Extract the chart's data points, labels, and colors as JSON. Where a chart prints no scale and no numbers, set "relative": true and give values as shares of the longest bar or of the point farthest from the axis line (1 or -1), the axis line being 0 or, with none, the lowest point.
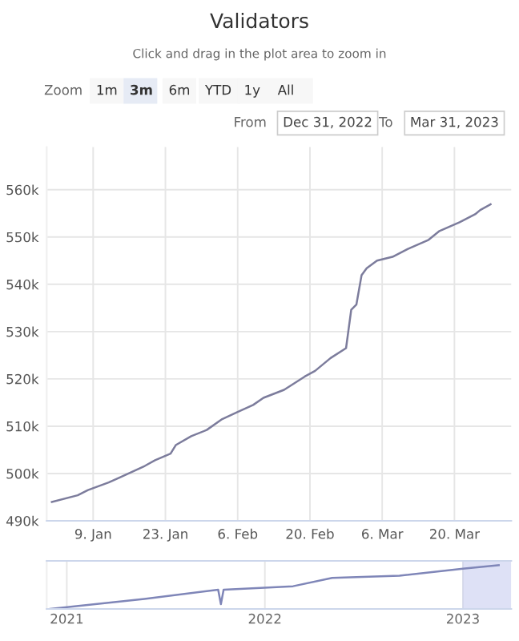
{
  "chart_data": [
    {
      "type": "line",
      "title": "Validators",
      "subtitle": "Click and drag in the plot area to zoom in",
      "annotations": [
        "Zoom",
        "1m",
        "3m",
        "6m",
        "YTD",
        "1y",
        "All",
        "From",
        "Dec 31, 2022",
        "To",
        "Mar 31, 2023"
      ],
      "x": [
        "2023-01-01",
        "2023-01-06",
        "2023-01-08",
        "2023-01-12",
        "2023-01-14",
        "2023-01-19",
        "2023-01-21",
        "2023-01-24",
        "2023-01-25",
        "2023-01-28",
        "2023-01-31",
        "2023-02-03",
        "2023-02-06",
        "2023-02-09",
        "2023-02-11",
        "2023-02-15",
        "2023-02-19",
        "2023-02-21",
        "2023-02-24",
        "2023-02-27",
        "2023-02-28",
        "2023-03-01",
        "2023-03-02",
        "2023-03-03",
        "2023-03-05",
        "2023-03-08",
        "2023-03-11",
        "2023-03-15",
        "2023-03-17",
        "2023-03-21",
        "2023-03-24",
        "2023-03-25",
        "2023-03-27"
      ],
      "series": [
        {
          "color": "#7c7c9c",
          "values": [
            494000,
            495400,
            496500,
            498100,
            499100,
            501600,
            502800,
            504200,
            506000,
            507900,
            509200,
            511500,
            513000,
            514500,
            516000,
            517700,
            520500,
            521700,
            524400,
            526500,
            534600,
            535700,
            541900,
            543400,
            545000,
            545800,
            547500,
            549400,
            551200,
            553100,
            554800,
            555700,
            556900
          ]
        }
      ],
      "xlim": [
        "2022-12-31",
        "2023-03-31"
      ],
      "xticks": [
        {
          "value": "2023-01-09",
          "label": "9. Jan"
        },
        {
          "value": "2023-01-23",
          "label": "23. Jan"
        },
        {
          "value": "2023-02-06",
          "label": "6. Feb"
        },
        {
          "value": "2023-02-20",
          "label": "20. Feb"
        },
        {
          "value": "2023-03-06",
          "label": "6. Mar"
        },
        {
          "value": "2023-03-20",
          "label": "20. Mar"
        }
      ],
      "ylim": [
        490000,
        569000
      ],
      "yticks": [
        {
          "value": 490000,
          "label": "490k"
        },
        {
          "value": 500000,
          "label": "500k"
        },
        {
          "value": 510000,
          "label": "510k"
        },
        {
          "value": 520000,
          "label": "520k"
        },
        {
          "value": 530000,
          "label": "530k"
        },
        {
          "value": 540000,
          "label": "540k"
        },
        {
          "value": 550000,
          "label": "550k"
        },
        {
          "value": 560000,
          "label": "560k"
        }
      ],
      "grid": true,
      "marker": "none",
      "line_style": "solid"
    },
    {
      "type": "line",
      "relative": true,
      "x": [
        "2020-12-01",
        "2021-05-24",
        "2021-10-07",
        "2021-10-12",
        "2021-10-17",
        "2022-02-22",
        "2022-05-05",
        "2022-09-06",
        "2023-01-01",
        "2023-03-08"
      ],
      "series": [
        {
          "color": "#7f86b8",
          "values": [
            0,
            0.23,
            0.44,
            0.11,
            0.44,
            0.52,
            0.71,
            0.76,
            0.92,
            1.0
          ]
        }
      ],
      "xlim": [
        "2020-11-25",
        "2023-03-31"
      ],
      "xticks": [
        {
          "value": "2021-01-01",
          "label": "2021"
        },
        {
          "value": "2022-01-01",
          "label": "2022"
        },
        {
          "value": "2023-01-01",
          "label": "2023"
        }
      ],
      "bands": [
        {
          "axis": "x",
          "from": "2022-12-31",
          "to": "2023-03-31",
          "color": "#c8cdf0"
        }
      ],
      "grid": "x",
      "tick_labels": "x"
    }
  ]
}
